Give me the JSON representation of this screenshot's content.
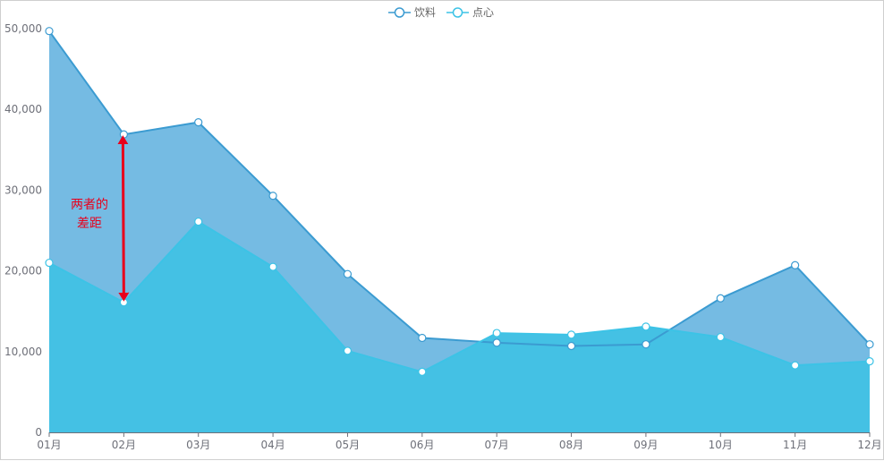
{
  "chart_data": {
    "type": "area",
    "categories": [
      "01月",
      "02月",
      "03月",
      "04月",
      "05月",
      "06月",
      "07月",
      "08月",
      "09月",
      "10月",
      "11月",
      "12月"
    ],
    "series": [
      {
        "name": "饮料",
        "values": [
          49700,
          36900,
          38400,
          29300,
          19600,
          11700,
          11100,
          10700,
          10900,
          16600,
          20700,
          10900
        ],
        "color": "#3b9bd1",
        "fill": "#75bbe3"
      },
      {
        "name": "点心",
        "values": [
          21000,
          16100,
          26100,
          20500,
          10100,
          7500,
          12300,
          12100,
          13100,
          11800,
          8300,
          8800
        ],
        "color": "#3cc3e6",
        "fill": "#44c1e4"
      }
    ],
    "ylim": [
      0,
      50000
    ],
    "yticks": [
      "0",
      "10,000",
      "20,000",
      "30,000",
      "40,000",
      "50,000"
    ],
    "legend_position": "top-center",
    "grid": false,
    "annotation": {
      "line1": "两者的",
      "line2": "差距",
      "color": "#e8001c"
    }
  }
}
